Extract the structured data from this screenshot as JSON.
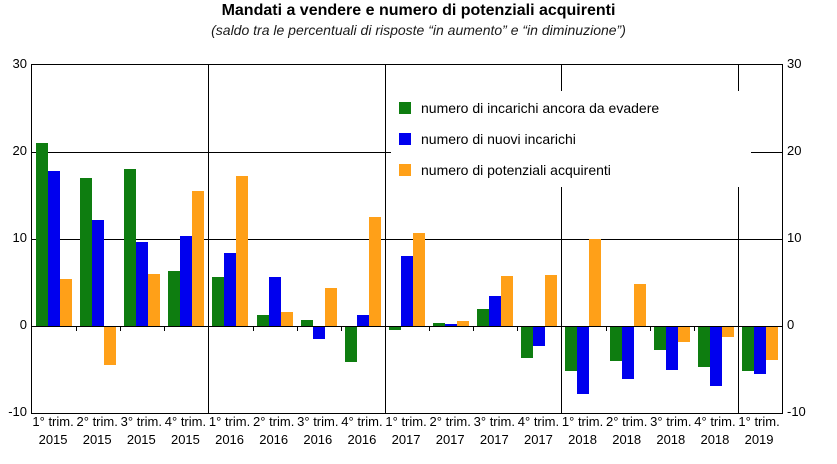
{
  "title": "Mandati a vendere e numero di potenziali acquirenti",
  "subtitle": "(saldo tra le percentuali di risposte “in aumento” e “in diminuzione”)",
  "chart_data": {
    "type": "bar",
    "title": "Mandati a vendere e numero di potenziali acquirenti",
    "subtitle": "(saldo tra le percentuali di risposte “in aumento” e “in diminuzione”)",
    "ylim": [
      -10,
      30
    ],
    "yticks": [
      30,
      20,
      10,
      0,
      -10
    ],
    "grid_values": [
      20,
      10,
      0
    ],
    "grid": true,
    "legend_position": "inside-top-right",
    "year_separators_after_index": [
      3,
      7,
      11,
      15
    ],
    "categories": [
      {
        "quarter": "1° trim.",
        "year": "2015"
      },
      {
        "quarter": "2° trim.",
        "year": "2015"
      },
      {
        "quarter": "3° trim.",
        "year": "2015"
      },
      {
        "quarter": "4° trim.",
        "year": "2015"
      },
      {
        "quarter": "1° trim.",
        "year": "2016"
      },
      {
        "quarter": "2° trim.",
        "year": "2016"
      },
      {
        "quarter": "3° trim.",
        "year": "2016"
      },
      {
        "quarter": "4° trim.",
        "year": "2016"
      },
      {
        "quarter": "1° trim.",
        "year": "2017"
      },
      {
        "quarter": "2° trim.",
        "year": "2017"
      },
      {
        "quarter": "3° trim.",
        "year": "2017"
      },
      {
        "quarter": "4° trim.",
        "year": "2017"
      },
      {
        "quarter": "1° trim.",
        "year": "2018"
      },
      {
        "quarter": "2° trim.",
        "year": "2018"
      },
      {
        "quarter": "3° trim.",
        "year": "2018"
      },
      {
        "quarter": "4° trim.",
        "year": "2018"
      },
      {
        "quarter": "1° trim.",
        "year": "2019"
      }
    ],
    "series": [
      {
        "name": "numero di incarichi ancora da evadere",
        "color": "#0e7d10",
        "values": [
          21.0,
          17.0,
          18.0,
          6.3,
          5.6,
          1.3,
          0.7,
          -4.0,
          -0.4,
          0.3,
          2.0,
          -3.6,
          -5.1,
          -3.9,
          -2.7,
          -4.6,
          -5.0
        ]
      },
      {
        "name": "numero di nuovi incarichi",
        "color": "#0000ee",
        "values": [
          17.8,
          12.2,
          9.7,
          10.4,
          8.4,
          5.6,
          -1.4,
          1.3,
          8.1,
          0.2,
          3.5,
          -2.2,
          -7.7,
          -6.0,
          -4.9,
          -6.8,
          -5.4
        ]
      },
      {
        "name": "numero di potenziali acquirenti",
        "color": "#ffa018",
        "values": [
          5.4,
          -4.4,
          6.0,
          15.5,
          17.2,
          1.6,
          4.4,
          12.5,
          10.7,
          0.6,
          5.8,
          5.9,
          10.0,
          4.8,
          -1.7,
          -1.1,
          -3.8
        ]
      }
    ]
  }
}
